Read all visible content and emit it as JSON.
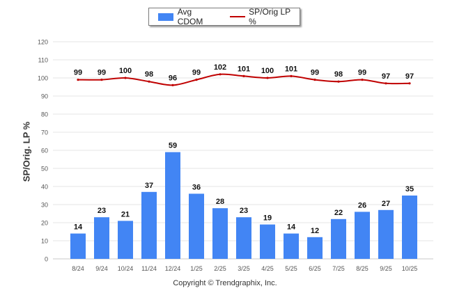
{
  "legend": {
    "bar_label": "Avg CDOM",
    "line_label": "SP/Orig LP %"
  },
  "copyright": "Copyright © Trendgraphix, Inc.",
  "colors": {
    "bar": "#4285f4",
    "line": "#c00000",
    "grid": "#e6e6e6",
    "axis_text": "#555555"
  },
  "chart_data": {
    "type": "bar",
    "title": "",
    "xlabel": "",
    "ylabel": "SP/Orig. LP %",
    "ylim": [
      0,
      120
    ],
    "yticks": [
      0,
      10,
      20,
      30,
      40,
      50,
      60,
      70,
      80,
      90,
      100,
      110,
      120
    ],
    "categories": [
      "8/24",
      "9/24",
      "10/24",
      "11/24",
      "12/24",
      "1/25",
      "2/25",
      "3/25",
      "4/25",
      "5/25",
      "6/25",
      "7/25",
      "8/25",
      "9/25",
      "10/25"
    ],
    "series": [
      {
        "name": "Avg CDOM",
        "type": "bar",
        "values": [
          14,
          23,
          21,
          37,
          59,
          36,
          28,
          23,
          19,
          14,
          12,
          22,
          26,
          27,
          35
        ]
      },
      {
        "name": "SP/Orig LP %",
        "type": "line",
        "values": [
          99,
          99,
          100,
          98,
          96,
          99,
          102,
          101,
          100,
          101,
          99,
          98,
          99,
          97,
          97
        ]
      }
    ],
    "legend_position": "top-center",
    "grid": true
  }
}
